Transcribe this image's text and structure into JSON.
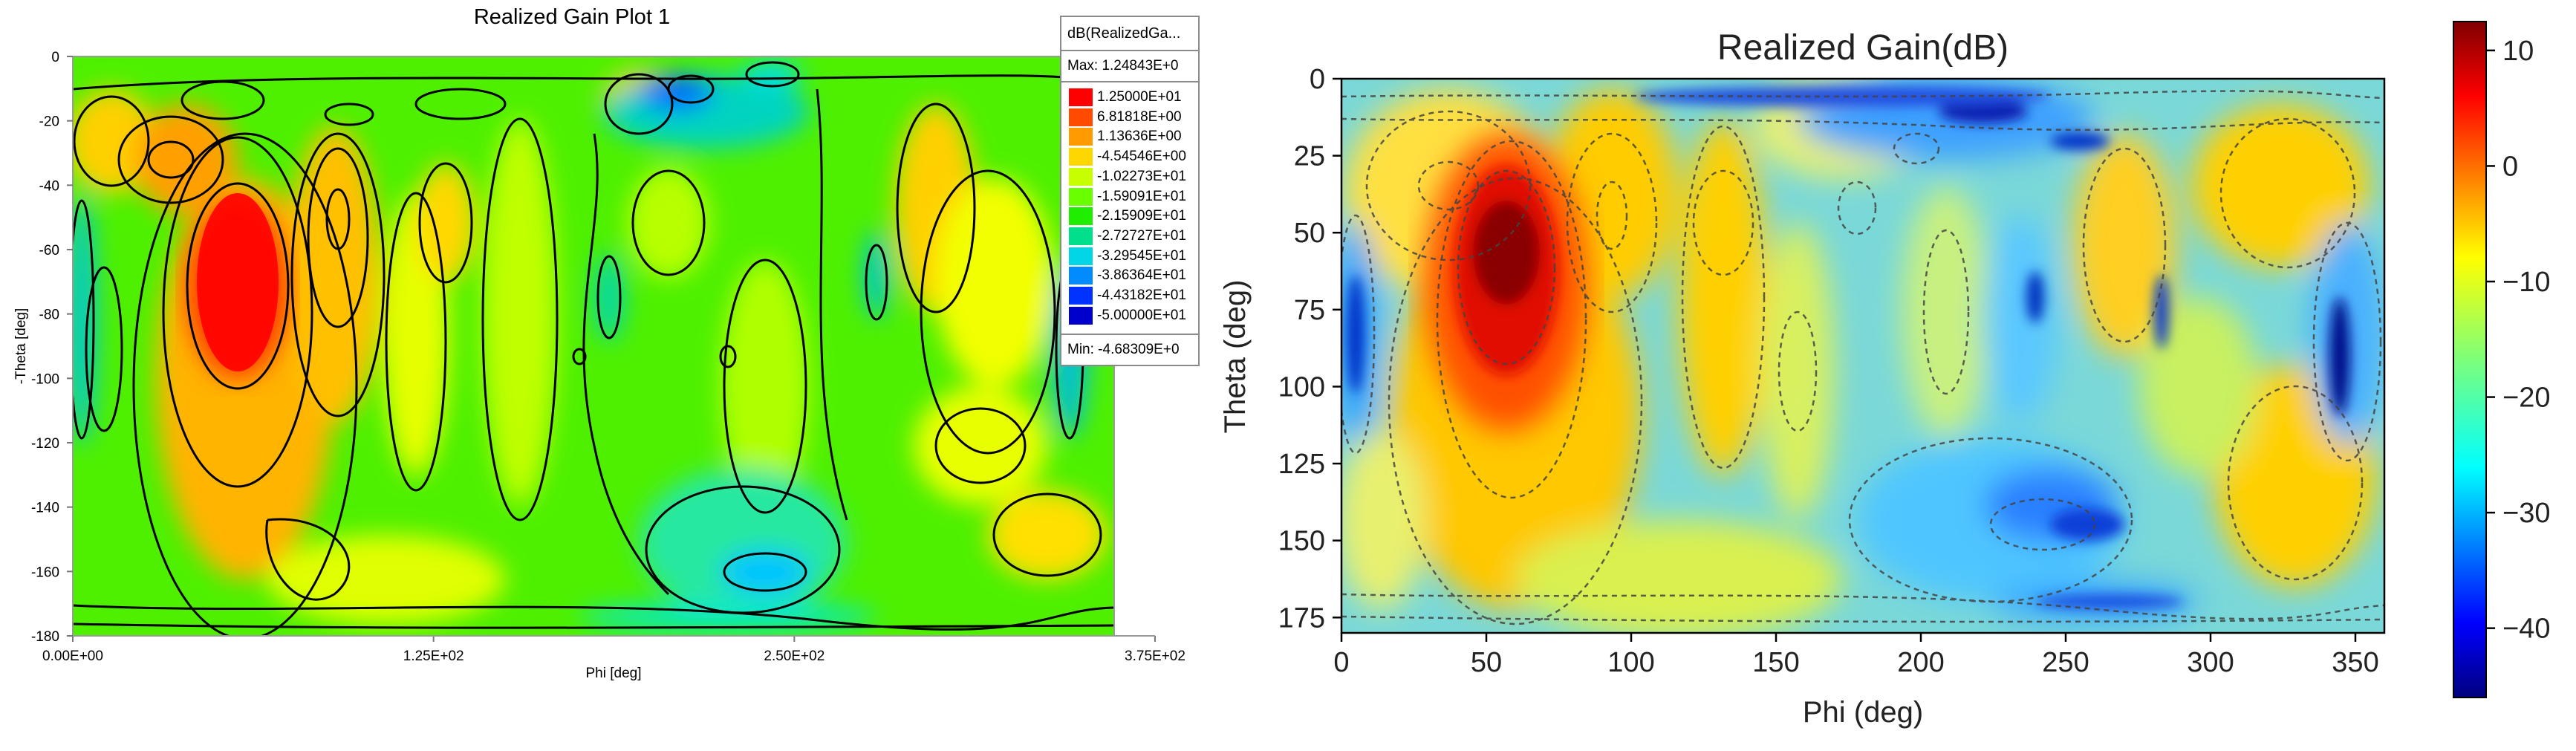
{
  "chart_data": [
    {
      "type": "heatmap",
      "title": "Realized Gain Plot 1",
      "xlabel": "Phi [deg]",
      "ylabel": "-Theta [deg]",
      "xlim": [
        0,
        375
      ],
      "ylim": [
        -180,
        0
      ],
      "x_ticks": [
        "0.00E+00",
        "1.25E+02",
        "2.50E+02",
        "3.75E+02"
      ],
      "y_ticks": [
        "0",
        "-20",
        "-40",
        "-60",
        "-80",
        "-100",
        "-120",
        "-140",
        "-160",
        "-180"
      ],
      "contours": true,
      "legend": {
        "title": "dB(RealizedGa...",
        "max": "Max: 1.24843E+0",
        "min": "Min: -4.68309E+0",
        "entries": [
          {
            "label": "1.25000E+01",
            "color": "#ff0000"
          },
          {
            "label": "6.81818E+00",
            "color": "#ff4a00"
          },
          {
            "label": "1.13636E+00",
            "color": "#ff9b00"
          },
          {
            "label": "-4.54546E+00",
            "color": "#ffd700"
          },
          {
            "label": "-1.02273E+01",
            "color": "#c8ff00"
          },
          {
            "label": "-1.59091E+01",
            "color": "#6aff00"
          },
          {
            "label": "-2.15909E+01",
            "color": "#1fee00"
          },
          {
            "label": "-2.72727E+01",
            "color": "#00e08a"
          },
          {
            "label": "-3.29545E+01",
            "color": "#00d6e6"
          },
          {
            "label": "-3.86364E+01",
            "color": "#008cff"
          },
          {
            "label": "-4.43182E+01",
            "color": "#0033ff"
          },
          {
            "label": "-5.00000E+01",
            "color": "#0000cc"
          }
        ]
      },
      "peak": {
        "phi": 60,
        "neg_theta": -68,
        "value_db": 12.5
      }
    },
    {
      "type": "heatmap",
      "title": "Realized Gain(dB)",
      "xlabel": "Phi (deg)",
      "ylabel": "Theta (deg)",
      "xlim": [
        0,
        360
      ],
      "ylim": [
        180,
        0
      ],
      "x_ticks": [
        "0",
        "50",
        "100",
        "150",
        "200",
        "250",
        "300",
        "350"
      ],
      "y_ticks": [
        "0",
        "25",
        "50",
        "75",
        "100",
        "125",
        "150",
        "175"
      ],
      "contours": true,
      "colorbar": {
        "range": [
          -46,
          12.5
        ],
        "ticks": [
          "10",
          "0",
          "−10",
          "−20",
          "−30",
          "−40"
        ],
        "tick_values": [
          10,
          0,
          -10,
          -20,
          -30,
          -40
        ],
        "colormap": "jet"
      },
      "peak": {
        "phi": 60,
        "theta": 55,
        "value_db": 12.5
      }
    }
  ]
}
